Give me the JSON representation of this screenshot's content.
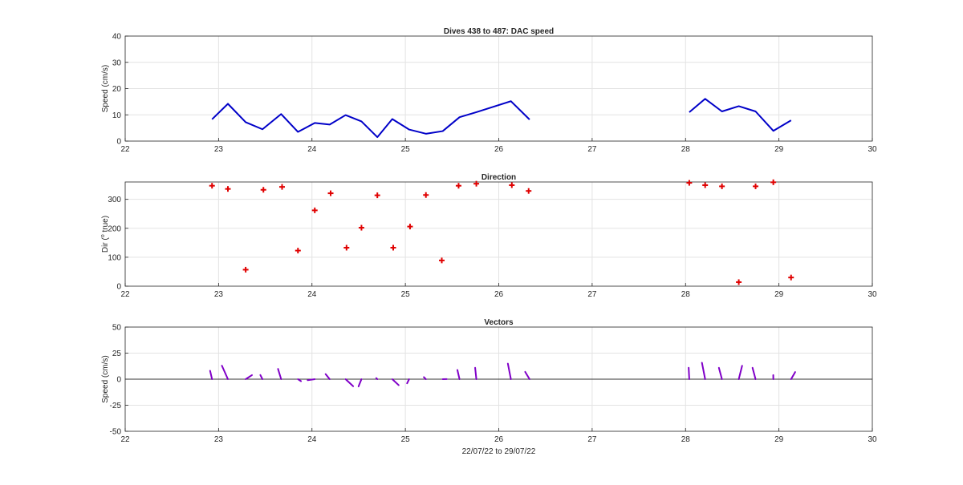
{
  "chart_data": [
    {
      "type": "line",
      "title": "Dives 438 to 487: DAC speed",
      "xlabel": "",
      "ylabel": "Speed (cm/s)",
      "xlim": [
        22,
        30
      ],
      "ylim": [
        0,
        40
      ],
      "xticks": [
        22,
        23,
        24,
        25,
        26,
        27,
        28,
        29,
        30
      ],
      "yticks": [
        0,
        10,
        20,
        30,
        40
      ],
      "grid": true,
      "series": [
        {
          "color": "#0000c8",
          "segments": [
            {
              "x": [
                22.93,
                23.1,
                23.29,
                23.47,
                23.67,
                23.85,
                24.03,
                24.19,
                24.36,
                24.53,
                24.7,
                24.86,
                25.04,
                25.22,
                25.4,
                25.58,
                25.76,
                26.13,
                26.33
              ],
              "y": [
                8.3,
                14.2,
                7.2,
                4.5,
                10.3,
                3.5,
                6.9,
                6.3,
                9.9,
                7.5,
                1.5,
                8.4,
                4.4,
                2.8,
                3.8,
                9.1,
                11,
                15.2,
                8.2
              ]
            },
            {
              "x": [
                28.04,
                28.21,
                28.39,
                28.57,
                28.75,
                28.94,
                29.13
              ],
              "y": [
                11,
                16.1,
                11.3,
                13.3,
                11.3,
                3.9,
                7.9
              ]
            }
          ]
        }
      ]
    },
    {
      "type": "scatter",
      "title": "Direction",
      "xlabel": "",
      "ylabel": "Dir (° true)",
      "ylabel_parts": [
        "Dir (",
        "o",
        " true)"
      ],
      "xlim": [
        22,
        30
      ],
      "ylim": [
        0,
        360
      ],
      "xticks": [
        22,
        23,
        24,
        25,
        26,
        27,
        28,
        29,
        30
      ],
      "yticks": [
        0,
        100,
        200,
        300
      ],
      "grid": true,
      "series": [
        {
          "marker": "+",
          "color": "#e00000",
          "x": [
            22.93,
            23.1,
            23.29,
            23.48,
            23.68,
            23.85,
            24.03,
            24.2,
            24.37,
            24.53,
            24.7,
            24.87,
            25.05,
            25.22,
            25.39,
            25.57,
            25.76,
            26.14,
            26.32,
            28.04,
            28.21,
            28.39,
            28.57,
            28.75,
            28.94,
            29.13
          ],
          "y": [
            347,
            336,
            57,
            333,
            343,
            123,
            262,
            321,
            133,
            202,
            314,
            133,
            206,
            315,
            89,
            347,
            354,
            349,
            329,
            357,
            349,
            345,
            14,
            345,
            359,
            30
          ]
        }
      ]
    },
    {
      "type": "vector",
      "title": "Vectors",
      "xlabel": "22/07/22 to 29/07/22",
      "ylabel": "Speed (cm/s)",
      "xlim": [
        22,
        30
      ],
      "ylim": [
        -50,
        50
      ],
      "xticks": [
        22,
        23,
        24,
        25,
        26,
        27,
        28,
        29,
        30
      ],
      "yticks": [
        -50,
        -25,
        0,
        25,
        50
      ],
      "grid": true,
      "zero_line": true,
      "series": [
        {
          "color": "#8000c8",
          "x": [
            22.93,
            23.1,
            23.29,
            23.47,
            23.67,
            23.85,
            24.03,
            24.19,
            24.36,
            24.53,
            24.7,
            24.86,
            25.04,
            25.22,
            25.4,
            25.58,
            25.76,
            26.13,
            26.33,
            28.04,
            28.21,
            28.39,
            28.57,
            28.75,
            28.94,
            29.13
          ],
          "speed": [
            8.3,
            14.2,
            7.2,
            4.5,
            10.3,
            3.5,
            6.9,
            6.3,
            9.9,
            7.5,
            1.5,
            8.4,
            4.4,
            2.8,
            3.8,
            9.1,
            11,
            15.2,
            8.2,
            11,
            16.1,
            11.3,
            13.3,
            11.3,
            3.9,
            7.9
          ],
          "direction": [
            347,
            336,
            57,
            333,
            343,
            123,
            262,
            321,
            133,
            202,
            314,
            133,
            206,
            315,
            89,
            347,
            354,
            349,
            329,
            357,
            349,
            345,
            14,
            345,
            359,
            30
          ]
        }
      ]
    }
  ]
}
